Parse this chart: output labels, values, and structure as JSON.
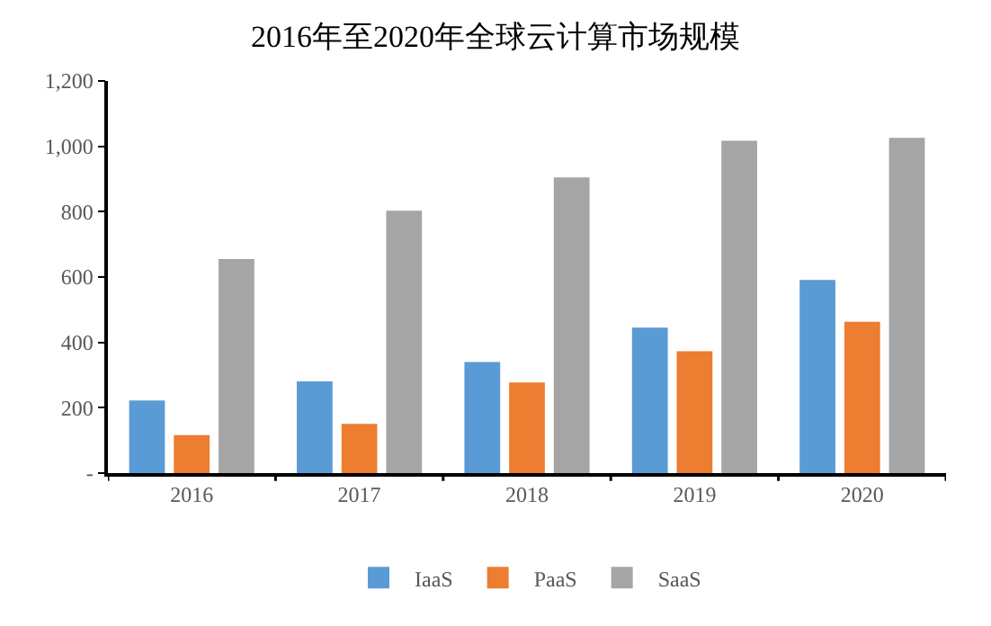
{
  "chart_data": {
    "type": "bar",
    "title": "2016年至2020年全球云计算市场规模",
    "categories": [
      "2016",
      "2017",
      "2018",
      "2019",
      "2020"
    ],
    "series": [
      {
        "name": "IaaS",
        "color": "#5b9bd5",
        "values": [
          222,
          281,
          340,
          445,
          591
        ]
      },
      {
        "name": "PaaS",
        "color": "#ed7d31",
        "values": [
          116,
          151,
          277,
          373,
          463
        ]
      },
      {
        "name": "SaaS",
        "color": "#a5a5a5",
        "values": [
          655,
          803,
          905,
          1017,
          1026
        ]
      }
    ],
    "ylim": [
      0,
      1200
    ],
    "yticks": [
      {
        "value": 0,
        "label": "-"
      },
      {
        "value": 200,
        "label": "200"
      },
      {
        "value": 400,
        "label": "400"
      },
      {
        "value": 600,
        "label": "600"
      },
      {
        "value": 800,
        "label": "800"
      },
      {
        "value": 1000,
        "label": "1,000"
      },
      {
        "value": 1200,
        "label": "1,200"
      }
    ],
    "grid": false,
    "legend": "bottom"
  }
}
